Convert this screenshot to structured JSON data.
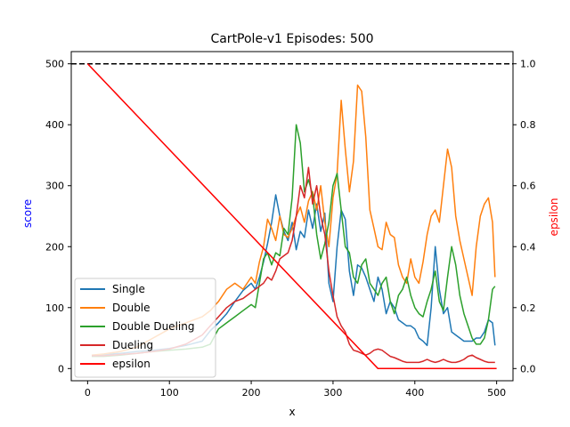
{
  "chart_data": {
    "type": "line",
    "title": "CartPole-v1 Episodes: 500",
    "xlabel": "x",
    "ylabel": "score",
    "y2label": "epsilon",
    "xlim": [
      -20,
      520
    ],
    "ylim": [
      -20,
      520
    ],
    "y2lim": [
      -0.04,
      1.04
    ],
    "xticks": [
      0,
      100,
      200,
      300,
      400,
      500
    ],
    "yticks": [
      0,
      100,
      200,
      300,
      400,
      500
    ],
    "y2ticks": [
      0.0,
      0.2,
      0.4,
      0.6,
      0.8,
      1.0
    ],
    "reference_line": {
      "y": 500,
      "style": "dashed",
      "color": "#000000"
    },
    "legend_position": "lower-left",
    "series": [
      {
        "name": "Single",
        "color": "#1f77b4",
        "axis": "left",
        "x": [
          5,
          20,
          40,
          60,
          80,
          100,
          120,
          140,
          150,
          160,
          170,
          180,
          190,
          200,
          205,
          210,
          215,
          220,
          225,
          230,
          235,
          240,
          245,
          250,
          255,
          260,
          265,
          270,
          275,
          280,
          285,
          290,
          295,
          300,
          305,
          310,
          315,
          320,
          325,
          330,
          335,
          340,
          345,
          350,
          355,
          360,
          365,
          370,
          375,
          380,
          385,
          390,
          395,
          400,
          405,
          410,
          415,
          420,
          425,
          430,
          435,
          440,
          445,
          450,
          455,
          460,
          465,
          470,
          475,
          480,
          485,
          490,
          495,
          498
        ],
        "values": [
          22,
          23,
          25,
          28,
          30,
          33,
          38,
          45,
          62,
          75,
          90,
          110,
          128,
          140,
          130,
          150,
          175,
          205,
          240,
          285,
          250,
          225,
          210,
          240,
          195,
          225,
          215,
          260,
          230,
          270,
          225,
          255,
          140,
          110,
          200,
          260,
          245,
          160,
          120,
          170,
          165,
          150,
          130,
          110,
          150,
          130,
          90,
          110,
          100,
          80,
          75,
          70,
          70,
          65,
          50,
          45,
          38,
          100,
          200,
          130,
          90,
          100,
          60,
          55,
          50,
          45,
          45,
          45,
          50,
          50,
          60,
          80,
          75,
          38
        ]
      },
      {
        "name": "Double",
        "color": "#ff7f0e",
        "axis": "left",
        "x": [
          5,
          20,
          40,
          60,
          80,
          100,
          120,
          140,
          150,
          160,
          170,
          180,
          190,
          200,
          205,
          210,
          215,
          220,
          225,
          230,
          235,
          240,
          245,
          250,
          255,
          260,
          265,
          270,
          275,
          280,
          285,
          290,
          295,
          300,
          305,
          310,
          315,
          320,
          325,
          330,
          335,
          340,
          345,
          350,
          355,
          360,
          365,
          370,
          375,
          380,
          385,
          390,
          395,
          400,
          405,
          410,
          415,
          420,
          425,
          430,
          435,
          440,
          445,
          450,
          455,
          460,
          465,
          470,
          475,
          480,
          485,
          490,
          495,
          498
        ],
        "values": [
          22,
          24,
          28,
          35,
          50,
          65,
          75,
          85,
          95,
          110,
          130,
          140,
          130,
          150,
          140,
          175,
          200,
          245,
          230,
          210,
          250,
          220,
          215,
          230,
          250,
          265,
          240,
          275,
          290,
          260,
          300,
          240,
          200,
          280,
          320,
          440,
          360,
          290,
          340,
          465,
          455,
          380,
          260,
          230,
          200,
          195,
          240,
          220,
          215,
          170,
          150,
          140,
          180,
          150,
          140,
          175,
          220,
          250,
          260,
          240,
          300,
          360,
          330,
          250,
          210,
          180,
          150,
          120,
          200,
          250,
          270,
          280,
          240,
          150
        ]
      },
      {
        "name": "Double Dueling",
        "color": "#2ca02c",
        "axis": "left",
        "x": [
          5,
          20,
          40,
          60,
          80,
          100,
          120,
          140,
          150,
          160,
          170,
          180,
          190,
          200,
          205,
          210,
          215,
          220,
          225,
          230,
          235,
          240,
          245,
          250,
          255,
          260,
          265,
          270,
          275,
          280,
          285,
          290,
          295,
          300,
          305,
          310,
          315,
          320,
          325,
          330,
          335,
          340,
          345,
          350,
          355,
          360,
          365,
          370,
          375,
          380,
          385,
          390,
          395,
          400,
          405,
          410,
          415,
          420,
          425,
          430,
          435,
          440,
          445,
          450,
          455,
          460,
          465,
          470,
          475,
          480,
          485,
          490,
          495,
          498
        ],
        "values": [
          20,
          20,
          22,
          25,
          28,
          30,
          32,
          35,
          40,
          65,
          75,
          85,
          95,
          105,
          100,
          140,
          180,
          190,
          170,
          190,
          185,
          230,
          220,
          280,
          400,
          370,
          290,
          310,
          285,
          220,
          180,
          205,
          240,
          300,
          320,
          260,
          200,
          190,
          150,
          140,
          170,
          180,
          140,
          130,
          120,
          140,
          150,
          110,
          90,
          120,
          130,
          150,
          120,
          100,
          90,
          85,
          110,
          130,
          160,
          110,
          95,
          150,
          200,
          170,
          120,
          90,
          70,
          50,
          40,
          40,
          50,
          80,
          130,
          135
        ]
      },
      {
        "name": "Dueling",
        "color": "#d62728",
        "axis": "left",
        "x": [
          5,
          20,
          40,
          60,
          80,
          100,
          120,
          140,
          150,
          160,
          170,
          180,
          190,
          200,
          205,
          210,
          215,
          220,
          225,
          230,
          235,
          240,
          245,
          250,
          255,
          260,
          265,
          270,
          275,
          280,
          285,
          290,
          295,
          300,
          305,
          310,
          315,
          320,
          325,
          330,
          335,
          340,
          345,
          350,
          355,
          360,
          365,
          370,
          375,
          380,
          385,
          390,
          395,
          400,
          405,
          410,
          415,
          420,
          425,
          430,
          435,
          440,
          445,
          450,
          455,
          460,
          465,
          470,
          475,
          480,
          485,
          490,
          495,
          498
        ],
        "values": [
          21,
          21,
          23,
          25,
          28,
          32,
          40,
          55,
          70,
          85,
          100,
          110,
          115,
          125,
          130,
          135,
          140,
          150,
          145,
          160,
          180,
          185,
          190,
          210,
          250,
          300,
          280,
          330,
          270,
          300,
          250,
          220,
          160,
          120,
          85,
          70,
          60,
          40,
          30,
          28,
          25,
          22,
          25,
          30,
          32,
          30,
          25,
          20,
          18,
          15,
          12,
          10,
          10,
          10,
          10,
          12,
          15,
          12,
          10,
          12,
          15,
          12,
          10,
          10,
          12,
          15,
          20,
          22,
          18,
          15,
          12,
          10,
          10,
          10
        ]
      },
      {
        "name": "epsilon",
        "color": "#ff0000",
        "axis": "right",
        "x": [
          0,
          355,
          500
        ],
        "values": [
          1.0,
          0.0,
          0.0
        ]
      }
    ]
  }
}
